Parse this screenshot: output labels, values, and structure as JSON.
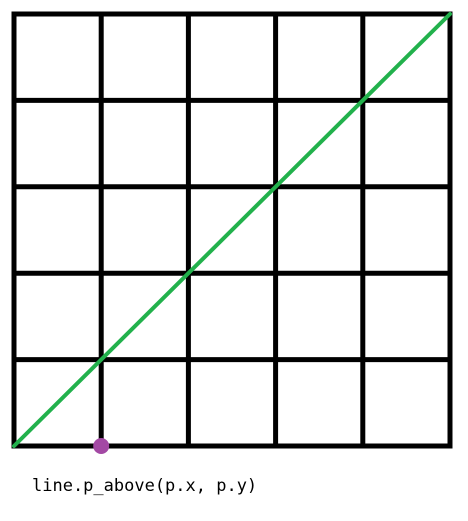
{
  "grid": {
    "columns": 5,
    "rows": 5
  },
  "line": {
    "from": [
      0,
      0
    ],
    "to": [
      5,
      5
    ]
  },
  "point": {
    "x": 1,
    "y": 0
  },
  "colors": {
    "grid": "#000000",
    "line": "#22b14c",
    "point": "#a349a4",
    "background": "#ffffff"
  },
  "caption": "line.p_above(p.x, p.y)"
}
